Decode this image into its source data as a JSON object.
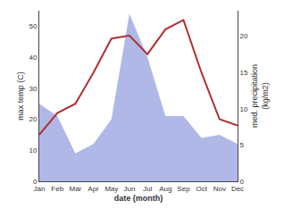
{
  "chart_data": {
    "type": "line",
    "xlabel": "date (month)",
    "ylabel": "max temp (C)",
    "y2label": "med. precipitation\n(kg/m2)",
    "categories": [
      "Jan",
      "Feb",
      "Mar",
      "Apr",
      "May",
      "Jun",
      "Jul",
      "Aug",
      "Sep",
      "Oct",
      "Nov",
      "Dec"
    ],
    "series": [
      {
        "type": "area",
        "color": "#b0b8e8",
        "values": [
          25,
          21,
          9,
          12,
          20,
          54,
          40,
          21,
          21,
          14,
          15,
          12
        ]
      },
      {
        "type": "line",
        "color": "#b03030",
        "values": [
          15,
          22,
          25,
          35,
          46,
          47,
          41,
          49,
          52,
          35,
          20,
          18
        ]
      }
    ],
    "ylim": [
      0,
      55
    ],
    "yticks": [
      0,
      10,
      20,
      30,
      40,
      50
    ],
    "y2lim": [
      0,
      23.5
    ],
    "y2ticks": [
      0,
      5,
      10,
      15,
      20
    ],
    "grid": false
  }
}
